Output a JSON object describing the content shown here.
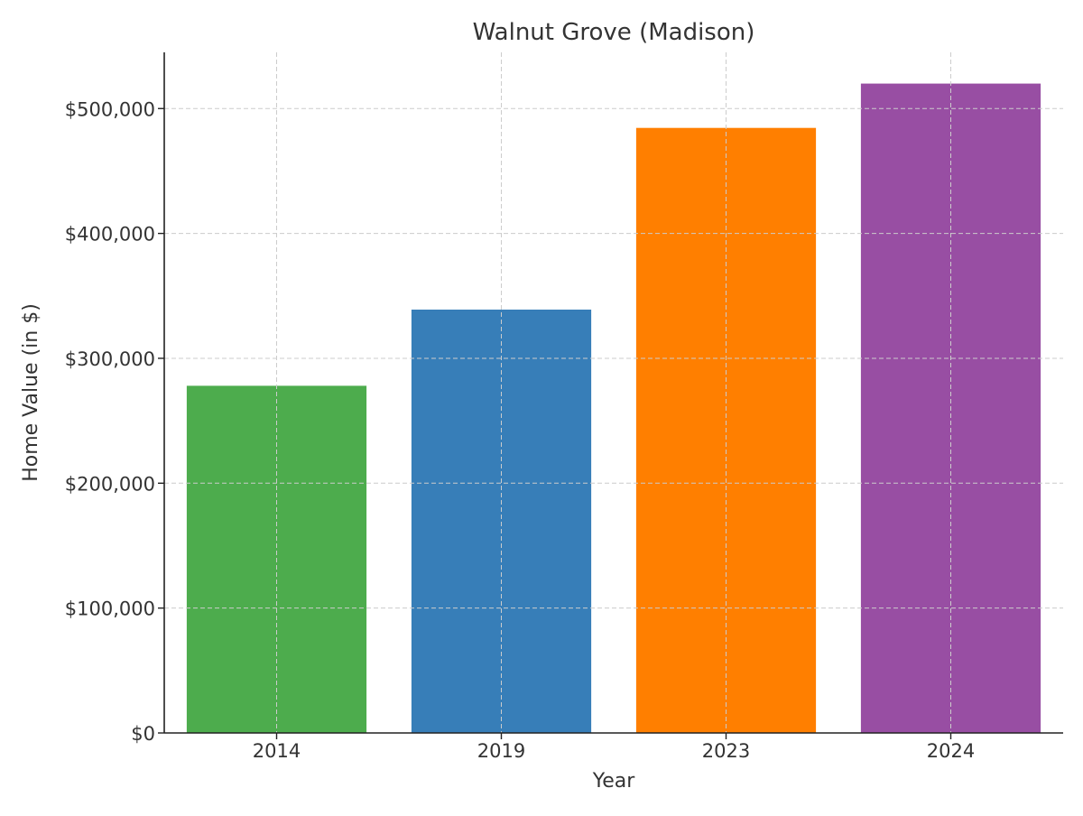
{
  "chart_data": {
    "type": "bar",
    "title": "Walnut Grove (Madison)",
    "xlabel": "Year",
    "ylabel": "Home Value (in $)",
    "categories": [
      "2014",
      "2019",
      "2023",
      "2024"
    ],
    "values": [
      278000,
      339000,
      484500,
      520000
    ],
    "colors": [
      "#4dac4d",
      "#377eb8",
      "#ff7f00",
      "#984ea3"
    ],
    "ylim": [
      0,
      545000
    ],
    "yticks": [
      0,
      100000,
      200000,
      300000,
      400000,
      500000
    ],
    "ytick_labels": [
      "$0",
      "$100,000",
      "$200,000",
      "$300,000",
      "$400,000",
      "$500,000"
    ],
    "grid": true,
    "legend": "none"
  }
}
